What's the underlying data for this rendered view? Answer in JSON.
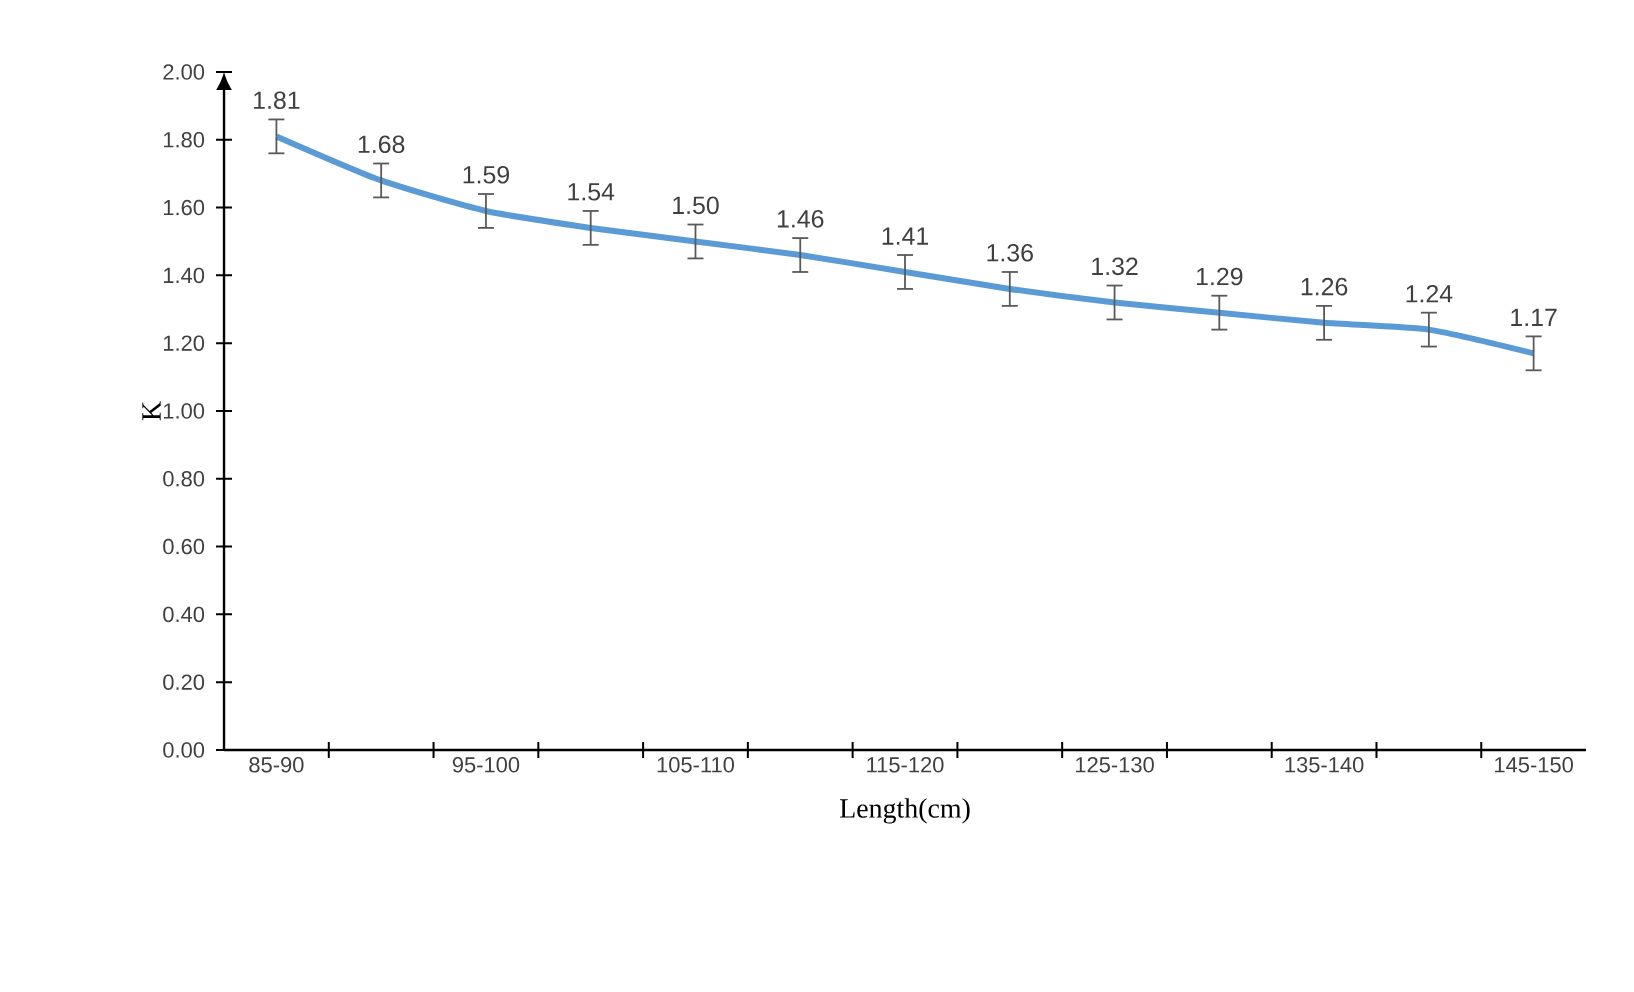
{
  "chart_data": {
    "type": "line",
    "xlabel": "Length(cm)",
    "ylabel": "K",
    "categories": [
      "85-90",
      null,
      "95-100",
      null,
      "105-110",
      null,
      "115-120",
      null,
      "125-130",
      null,
      "135-140",
      null,
      "145-150"
    ],
    "series": [
      {
        "color": "#5b9bd5",
        "values": [
          1.81,
          1.68,
          1.59,
          1.54,
          1.5,
          1.46,
          1.41,
          1.36,
          1.32,
          1.29,
          1.26,
          1.24,
          1.17
        ],
        "errors": [
          0.05,
          0.05,
          0.05,
          0.05,
          0.05,
          0.05,
          0.05,
          0.05,
          0.05,
          0.05,
          0.05,
          0.05,
          0.05
        ],
        "value_labels": [
          "1.81",
          "1.68",
          "1.59",
          "1.54",
          "1.50",
          "1.46",
          "1.41",
          "1.36",
          "1.32",
          "1.29",
          "1.26",
          "1.24",
          "1.17"
        ]
      }
    ],
    "ylim": [
      0,
      2
    ],
    "yticks": [
      {
        "value": 0,
        "label": "0.00"
      },
      {
        "value": 0.2,
        "label": "0.20"
      },
      {
        "value": 0.4,
        "label": "0.40"
      },
      {
        "value": 0.6,
        "label": "0.60"
      },
      {
        "value": 0.8,
        "label": "0.80"
      },
      {
        "value": 1.0,
        "label": "1.00"
      },
      {
        "value": 1.2,
        "label": "1.20"
      },
      {
        "value": 1.4,
        "label": "1.40"
      },
      {
        "value": 1.6,
        "label": "1.60"
      },
      {
        "value": 1.8,
        "label": "1.80"
      },
      {
        "value": 2.0,
        "label": "2.00"
      }
    ],
    "grid": false,
    "marker": "none",
    "line_style": "solid"
  }
}
